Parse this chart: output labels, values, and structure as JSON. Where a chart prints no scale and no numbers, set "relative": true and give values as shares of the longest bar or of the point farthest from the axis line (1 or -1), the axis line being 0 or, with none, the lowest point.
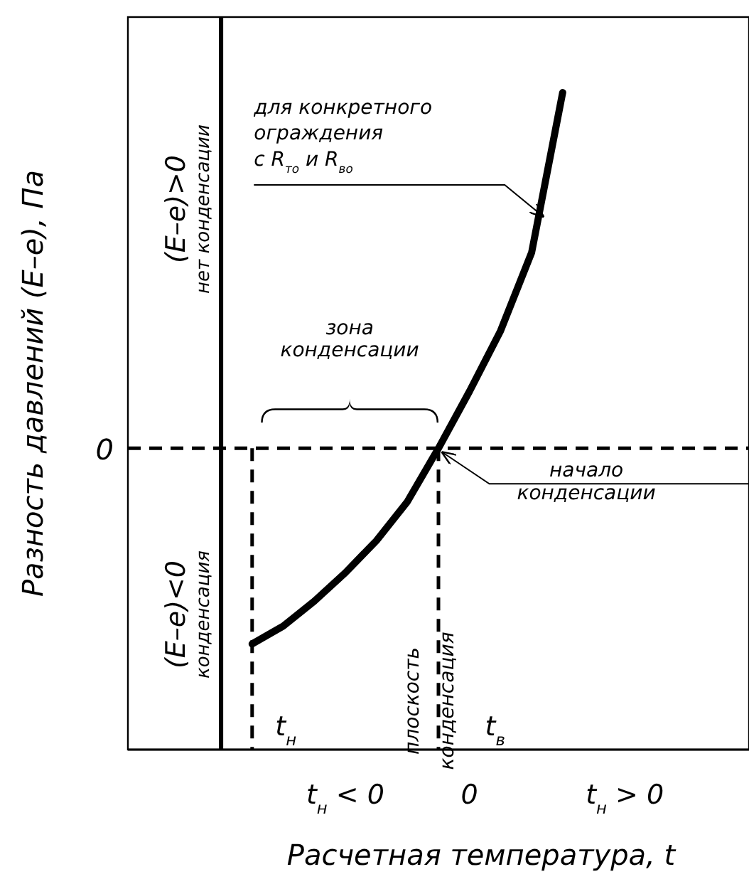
{
  "chart_data": {
    "type": "line",
    "relative": true,
    "xlabel": "Расчетная температура, t",
    "ylabel": "Разность давлений (E–e), Па",
    "categories": [
      null,
      null,
      null,
      null,
      null,
      null,
      null,
      "t$_{н}$ < 0",
      null,
      null,
      null,
      "0",
      null,
      null,
      null,
      null,
      "t$_{н}$ > 0",
      null,
      null,
      null,
      null
    ],
    "values": [
      null,
      null,
      null,
      null,
      -0.55,
      -0.5,
      -0.43,
      -0.35,
      -0.26,
      -0.15,
      0,
      0.16,
      0.33,
      0.55,
      1,
      null,
      null,
      null,
      null,
      null,
      null
    ],
    "color": "#000000",
    "marker": "none",
    "line_style": "solid",
    "ref_lines": [
      {
        "axis": "y",
        "value": 0,
        "line_style": "dashed",
        "color": "#000000"
      }
    ],
    "annotations": [
      "0",
      "(E–e)>0",
      "нет конденсации",
      "(E–e)<0",
      "конденсация",
      "зона\nконденсации",
      "для конкретного\nограждения\nс R$_{то}$ и R$_{во}$",
      "начало\nконденсации",
      "t$_{в}$",
      "t$_{н}$",
      "плоскость\nконденсация"
    ]
  }
}
